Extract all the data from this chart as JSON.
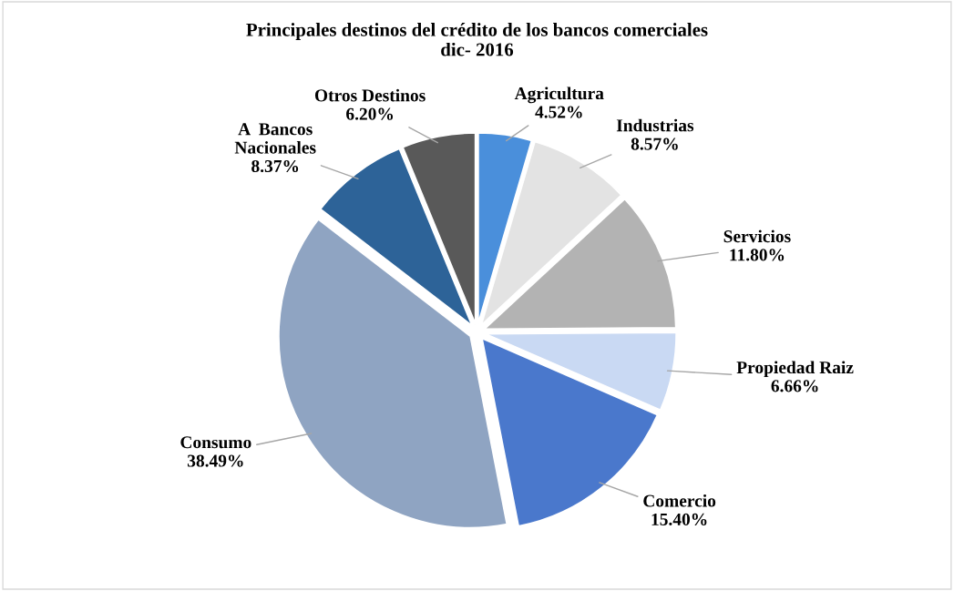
{
  "chart_data": {
    "type": "pie",
    "title": "Principales destinos del crédito de los bancos comerciales\ndic- 2016",
    "categories": [
      "Agricultura",
      "Industrias",
      "Servicios",
      "Propiedad Raiz",
      "Comercio",
      "Consumo",
      "A  Bancos\nNacionales",
      "Otros Destinos"
    ],
    "values": [
      4.52,
      8.57,
      11.8,
      6.66,
      15.4,
      38.49,
      8.37,
      6.2
    ],
    "value_labels": [
      "4.52%",
      "8.57%",
      "11.80%",
      "6.66%",
      "15.40%",
      "38.49%",
      "8.37%",
      "6.20%"
    ],
    "colors": [
      "#4a8fdb",
      "#e3e3e3",
      "#b3b3b3",
      "#c9d9f3",
      "#4a78cc",
      "#8fa4c2",
      "#2d6398",
      "#595959"
    ],
    "legend": false
  }
}
